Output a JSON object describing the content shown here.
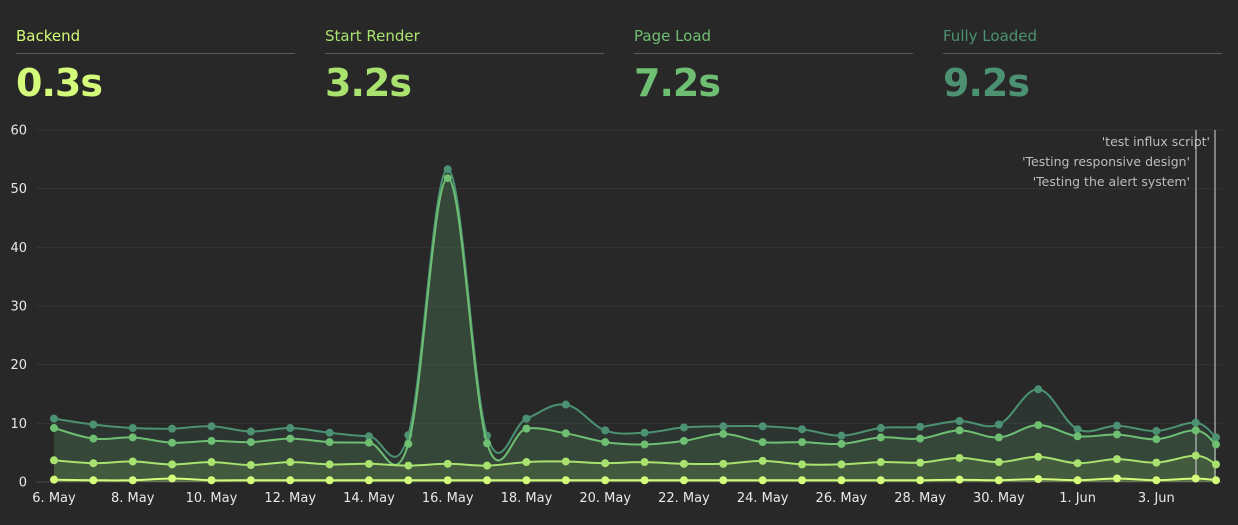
{
  "metrics": [
    {
      "label": "Backend",
      "value": "0.3s",
      "color": "#d4fb79"
    },
    {
      "label": "Start Render",
      "value": "3.2s",
      "color": "#a9e26e"
    },
    {
      "label": "Page Load",
      "value": "7.2s",
      "color": "#6fbf73"
    },
    {
      "label": "Fully Loaded",
      "value": "9.2s",
      "color": "#4c9272"
    }
  ],
  "chart_data": {
    "type": "area",
    "title": "",
    "xlabel": "",
    "ylabel": "",
    "ylim": [
      0,
      60
    ],
    "yticks": [
      0,
      10,
      20,
      30,
      40,
      50,
      60
    ],
    "grid": true,
    "legend": "none",
    "x_tick_labels": [
      "6. May",
      "8. May",
      "10. May",
      "12. May",
      "14. May",
      "16. May",
      "18. May",
      "20. May",
      "22. May",
      "24. May",
      "26. May",
      "28. May",
      "30. May",
      "1. Jun",
      "3. Jun"
    ],
    "x": [
      "6. May",
      "7. May",
      "8. May",
      "9. May",
      "10. May",
      "11. May",
      "12. May",
      "13. May",
      "14. May",
      "15. May",
      "16. May",
      "17. May",
      "18. May",
      "19. May",
      "20. May",
      "21. May",
      "22. May",
      "23. May",
      "24. May",
      "25. May",
      "26. May",
      "27. May",
      "28. May",
      "29. May",
      "30. May",
      "31. May",
      "1. Jun",
      "2. Jun",
      "3. Jun",
      "4. Jun"
    ],
    "series": [
      {
        "name": "Fully Loaded",
        "color": "#4c9272",
        "values": [
          10.8,
          9.8,
          9.2,
          9.1,
          9.5,
          8.6,
          9.2,
          8.4,
          7.8,
          8.0,
          53.3,
          7.9,
          10.8,
          13.2,
          8.8,
          8.4,
          9.3,
          9.5,
          9.5,
          9.0,
          7.9,
          9.2,
          9.4,
          10.4,
          9.8,
          15.8,
          9.0,
          9.6,
          8.7,
          10.1
        ]
      },
      {
        "name": "Page Load",
        "color": "#6fbf73",
        "values": [
          9.2,
          7.4,
          7.6,
          6.7,
          7.0,
          6.8,
          7.4,
          6.8,
          6.7,
          6.5,
          51.8,
          6.6,
          9.1,
          8.3,
          6.8,
          6.4,
          7.0,
          8.2,
          6.8,
          6.8,
          6.5,
          7.6,
          7.4,
          8.8,
          7.6,
          9.7,
          7.8,
          8.1,
          7.3,
          8.8
        ]
      },
      {
        "name": "Start Render",
        "color": "#a9e26e",
        "values": [
          3.7,
          3.2,
          3.5,
          3.0,
          3.4,
          2.9,
          3.4,
          3.0,
          3.1,
          2.8,
          3.1,
          2.8,
          3.4,
          3.5,
          3.2,
          3.4,
          3.1,
          3.1,
          3.6,
          3.0,
          3.0,
          3.4,
          3.3,
          4.1,
          3.4,
          4.3,
          3.2,
          3.9,
          3.3,
          4.5
        ]
      },
      {
        "name": "Backend",
        "color": "#d4fb79",
        "values": [
          0.4,
          0.3,
          0.3,
          0.6,
          0.3,
          0.3,
          0.3,
          0.3,
          0.3,
          0.3,
          0.3,
          0.3,
          0.3,
          0.3,
          0.3,
          0.3,
          0.3,
          0.3,
          0.3,
          0.3,
          0.3,
          0.3,
          0.3,
          0.4,
          0.3,
          0.5,
          0.3,
          0.6,
          0.3,
          0.6
        ]
      }
    ],
    "extra_points": [
      {
        "series": "Fully Loaded",
        "y": 7.6
      },
      {
        "series": "Page Load",
        "y": 6.4
      },
      {
        "series": "Start Render",
        "y": 3.0
      },
      {
        "series": "Backend",
        "y": 0.3
      }
    ],
    "annotations": [
      "'test influx script'",
      "'Testing responsive design'",
      "'Testing the alert system'"
    ]
  }
}
